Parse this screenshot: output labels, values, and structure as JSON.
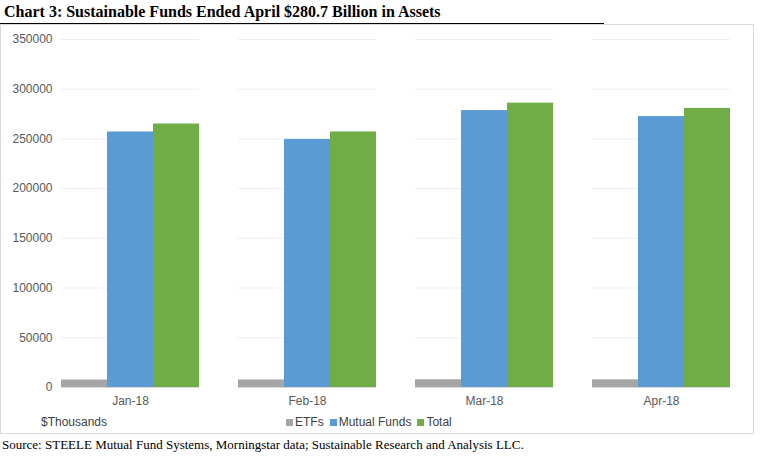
{
  "chart_data": {
    "type": "bar",
    "title": "Chart 3:  Sustainable Funds Ended April $280.7 Billion in Assets",
    "categories": [
      "Jan-18",
      "Feb-18",
      "Mar-18",
      "Apr-18"
    ],
    "series": [
      {
        "name": "ETFs",
        "color": "#a5a5a5",
        "values": [
          7500,
          7600,
          7800,
          7700
        ]
      },
      {
        "name": "Mutual Funds",
        "color": "#5b9bd5",
        "values": [
          257000,
          249500,
          278500,
          272500
        ]
      },
      {
        "name": "Total",
        "color": "#70ad47",
        "values": [
          265000,
          257000,
          286000,
          280700
        ]
      }
    ],
    "ylim": [
      0,
      350000
    ],
    "yticks": [
      0,
      50000,
      100000,
      150000,
      200000,
      250000,
      300000,
      350000
    ],
    "grid": true,
    "legend": "bottom",
    "annotations": [
      "$Thousands"
    ],
    "source": "Source:  STEELE Mutual Fund Systems, Morningstar data; Sustainable Research and Analysis LLC."
  }
}
